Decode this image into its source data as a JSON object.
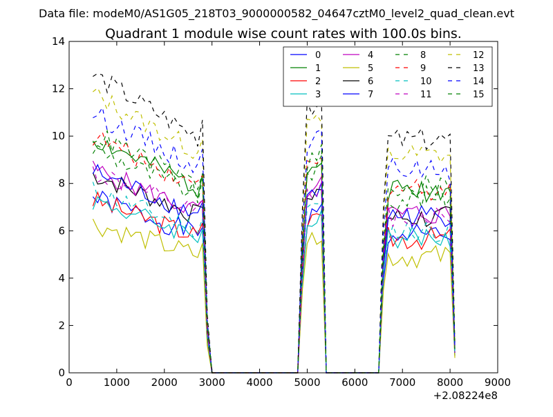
{
  "chart_data": {
    "type": "line",
    "suptitle": "Data file: modeM0/AS1G05_218T03_9000000582_04647cztM0_level2_quad_clean.evt",
    "title": "Quadrant 1 module wise count rates with 100.0s bins.",
    "xlabel": "",
    "ylabel": "",
    "x_offset_label": "+2.08224e8",
    "xlim": [
      0,
      9000
    ],
    "ylim": [
      0,
      14
    ],
    "xticks": [
      "0",
      "1000",
      "2000",
      "3000",
      "4000",
      "5000",
      "6000",
      "7000",
      "8000",
      "9000"
    ],
    "yticks": [
      "0",
      "2",
      "4",
      "6",
      "8",
      "10",
      "12",
      "14"
    ],
    "grid": false,
    "legend_position": "top-right",
    "series": [
      {
        "name": "0",
        "color": "#0000ff",
        "dash": "solid",
        "base": 7.4,
        "seed": 1
      },
      {
        "name": "1",
        "color": "#008000",
        "dash": "solid",
        "base": 9.9,
        "seed": 2
      },
      {
        "name": "2",
        "color": "#ff0000",
        "dash": "solid",
        "base": 7.3,
        "seed": 3
      },
      {
        "name": "3",
        "color": "#00bfbf",
        "dash": "solid",
        "base": 7.3,
        "seed": 4
      },
      {
        "name": "4",
        "color": "#bf00bf",
        "dash": "solid",
        "base": 8.6,
        "seed": 5
      },
      {
        "name": "5",
        "color": "#bfbf00",
        "dash": "solid",
        "base": 6.3,
        "seed": 6
      },
      {
        "name": "6",
        "color": "#000000",
        "dash": "solid",
        "base": 8.4,
        "seed": 7
      },
      {
        "name": "7",
        "color": "#0000ff",
        "dash": "solid",
        "base": 8.5,
        "seed": 8
      },
      {
        "name": "8",
        "color": "#008000",
        "dash": "dashed",
        "base": 9.5,
        "seed": 9
      },
      {
        "name": "9",
        "color": "#ff0000",
        "dash": "dashed",
        "base": 10.0,
        "seed": 10
      },
      {
        "name": "10",
        "color": "#00bfbf",
        "dash": "dashed",
        "base": 7.7,
        "seed": 11
      },
      {
        "name": "11",
        "color": "#bf00bf",
        "dash": "dashed",
        "base": 8.5,
        "seed": 12
      },
      {
        "name": "12",
        "color": "#bfbf00",
        "dash": "dashed",
        "base": 11.8,
        "seed": 13
      },
      {
        "name": "13",
        "color": "#000000",
        "dash": "dashed",
        "base": 12.6,
        "seed": 14
      },
      {
        "name": "14",
        "color": "#0000ff",
        "dash": "dashed",
        "base": 11.0,
        "seed": 15
      },
      {
        "name": "15",
        "color": "#008000",
        "dash": "dashed",
        "base": 10.1,
        "seed": 16
      }
    ]
  }
}
